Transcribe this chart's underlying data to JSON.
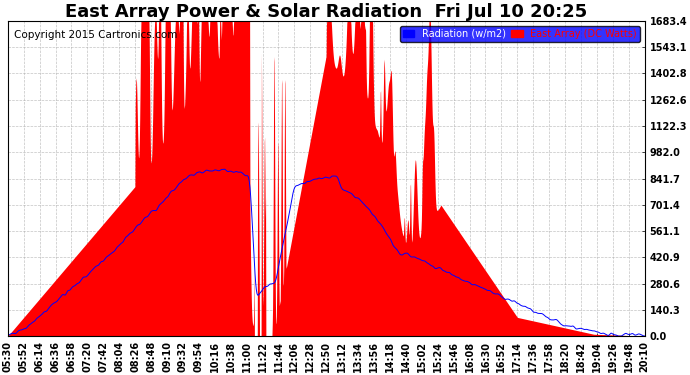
{
  "title": "East Array Power & Solar Radiation  Fri Jul 10 20:25",
  "copyright": "Copyright 2015 Cartronics.com",
  "legend_radiation": "Radiation (w/m2)",
  "legend_east": "East Array (DC Watts)",
  "legend_radiation_color": "#0000ff",
  "legend_east_color": "#ff0000",
  "background_color": "#ffffff",
  "plot_bg_color": "#ffffff",
  "grid_color": "#aaaaaa",
  "y_max": 1683.4,
  "y_min": 0.0,
  "y_ticks": [
    0.0,
    140.3,
    280.6,
    420.9,
    561.1,
    701.4,
    841.7,
    982.0,
    1122.3,
    1262.6,
    1402.8,
    1543.1,
    1683.4
  ],
  "x_labels": [
    "05:30",
    "05:52",
    "06:14",
    "06:36",
    "06:58",
    "07:20",
    "07:42",
    "08:04",
    "08:26",
    "08:48",
    "09:10",
    "09:32",
    "09:54",
    "10:16",
    "10:38",
    "11:00",
    "11:22",
    "11:44",
    "12:06",
    "12:28",
    "12:50",
    "13:12",
    "13:34",
    "13:56",
    "14:18",
    "14:40",
    "15:02",
    "15:24",
    "15:46",
    "16:08",
    "16:30",
    "16:52",
    "17:14",
    "17:36",
    "17:58",
    "18:20",
    "18:42",
    "19:04",
    "19:26",
    "19:48",
    "20:10"
  ],
  "title_fontsize": 13,
  "axis_fontsize": 7,
  "copyright_fontsize": 7.5
}
